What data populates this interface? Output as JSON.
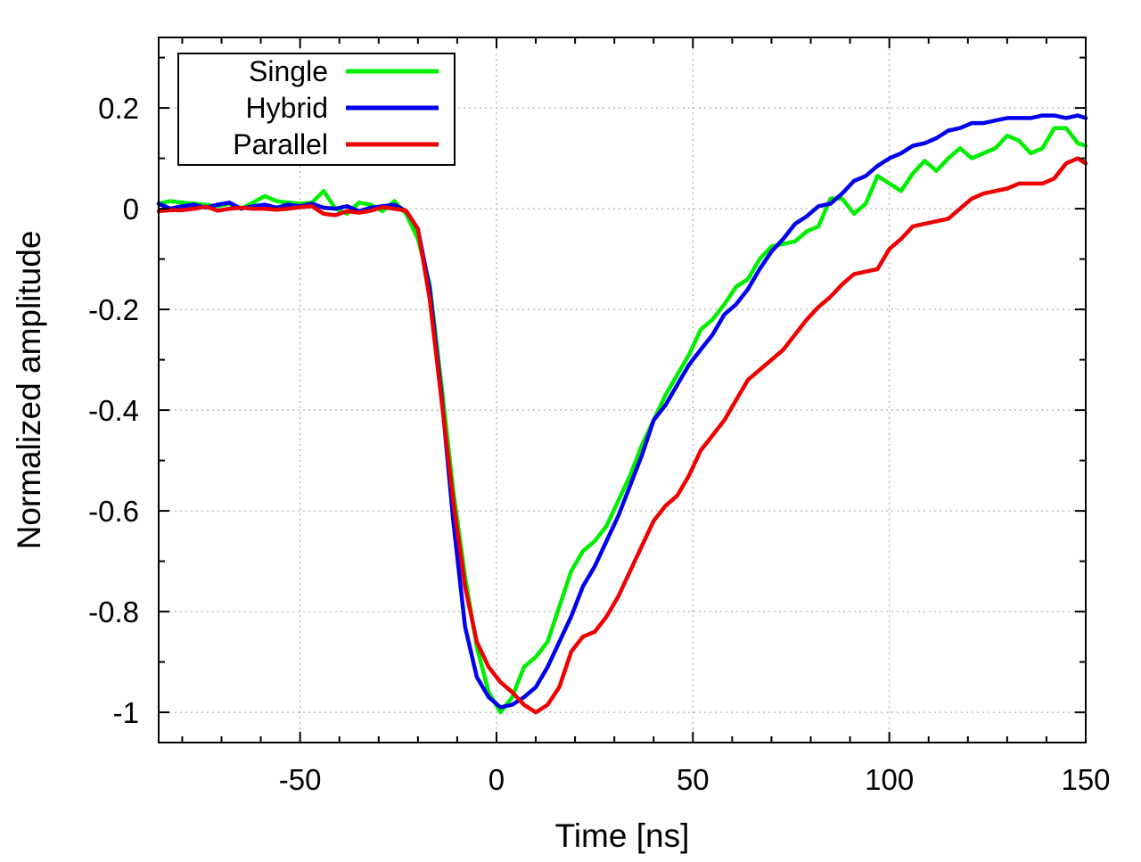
{
  "chart_data": {
    "type": "line",
    "xlabel": "Time [ns]",
    "ylabel": "Normalized amplitude",
    "xlim": [
      -86,
      150
    ],
    "ylim": [
      -1.06,
      0.34
    ],
    "xticks": [
      -50,
      0,
      50,
      100,
      150
    ],
    "xtick_labels": [
      "-50",
      "0",
      "50",
      "100",
      "150"
    ],
    "yticks": [
      0.2,
      0,
      -0.2,
      -0.4,
      -0.6,
      -0.8,
      -1
    ],
    "ytick_labels": [
      "0.2",
      "0",
      "-0.2",
      "-0.4",
      "-0.6",
      "-0.8",
      "-1"
    ],
    "grid": true,
    "legend_position": "top-left",
    "series": [
      {
        "name": "Single",
        "color": "#00ee00",
        "x": [
          -86,
          -83,
          -80,
          -77,
          -74,
          -71,
          -68,
          -65,
          -62,
          -59,
          -56,
          -53,
          -50,
          -47,
          -44,
          -41,
          -38,
          -35,
          -32,
          -29,
          -26,
          -23,
          -20,
          -17,
          -14,
          -11,
          -8,
          -5,
          -2,
          1,
          4,
          7,
          10,
          13,
          16,
          19,
          22,
          25,
          28,
          31,
          34,
          37,
          40,
          43,
          46,
          49,
          52,
          55,
          58,
          61,
          64,
          67,
          70,
          73,
          76,
          79,
          82,
          85,
          88,
          91,
          94,
          97,
          100,
          103,
          106,
          109,
          112,
          115,
          118,
          121,
          124,
          127,
          130,
          133,
          136,
          139,
          142,
          145,
          148,
          150
        ],
        "y": [
          0.01,
          0.015,
          0.012,
          0.01,
          0.008,
          0.005,
          0.01,
          0.0,
          0.012,
          0.025,
          0.015,
          0.012,
          0.01,
          0.012,
          0.035,
          0.0,
          -0.01,
          0.012,
          0.008,
          -0.005,
          0.015,
          -0.01,
          -0.06,
          -0.15,
          -0.35,
          -0.56,
          -0.73,
          -0.87,
          -0.96,
          -1.0,
          -0.97,
          -0.91,
          -0.89,
          -0.86,
          -0.79,
          -0.72,
          -0.68,
          -0.66,
          -0.63,
          -0.58,
          -0.53,
          -0.47,
          -0.42,
          -0.37,
          -0.33,
          -0.29,
          -0.24,
          -0.22,
          -0.19,
          -0.155,
          -0.14,
          -0.1,
          -0.075,
          -0.07,
          -0.065,
          -0.045,
          -0.035,
          0.02,
          0.02,
          -0.01,
          0.01,
          0.065,
          0.05,
          0.035,
          0.07,
          0.095,
          0.075,
          0.1,
          0.12,
          0.1,
          0.11,
          0.12,
          0.145,
          0.135,
          0.11,
          0.12,
          0.16,
          0.16,
          0.13,
          0.125
        ]
      },
      {
        "name": "Hybrid",
        "color": "#0000ee",
        "x": [
          -86,
          -83,
          -80,
          -77,
          -74,
          -71,
          -68,
          -65,
          -62,
          -59,
          -56,
          -53,
          -50,
          -47,
          -44,
          -41,
          -38,
          -35,
          -32,
          -29,
          -26,
          -23,
          -20,
          -17,
          -14,
          -11,
          -8,
          -5,
          -2,
          1,
          4,
          7,
          10,
          13,
          16,
          19,
          22,
          25,
          28,
          31,
          34,
          37,
          40,
          43,
          46,
          49,
          52,
          55,
          58,
          61,
          64,
          67,
          70,
          73,
          76,
          79,
          82,
          85,
          88,
          91,
          94,
          97,
          100,
          103,
          106,
          109,
          112,
          115,
          118,
          121,
          124,
          127,
          130,
          133,
          136,
          139,
          142,
          145,
          148,
          150
        ],
        "y": [
          0.01,
          0.0,
          0.005,
          0.008,
          0.002,
          0.008,
          0.012,
          0.0,
          0.005,
          0.008,
          0.002,
          0.008,
          0.005,
          0.01,
          0.002,
          0.0,
          0.005,
          -0.005,
          0.002,
          0.005,
          0.008,
          -0.005,
          -0.04,
          -0.16,
          -0.37,
          -0.62,
          -0.83,
          -0.93,
          -0.97,
          -0.99,
          -0.985,
          -0.97,
          -0.95,
          -0.91,
          -0.86,
          -0.81,
          -0.75,
          -0.71,
          -0.66,
          -0.61,
          -0.55,
          -0.49,
          -0.42,
          -0.39,
          -0.35,
          -0.31,
          -0.28,
          -0.25,
          -0.21,
          -0.19,
          -0.16,
          -0.12,
          -0.085,
          -0.06,
          -0.03,
          -0.015,
          0.005,
          0.01,
          0.03,
          0.055,
          0.065,
          0.085,
          0.1,
          0.11,
          0.125,
          0.13,
          0.14,
          0.155,
          0.16,
          0.17,
          0.17,
          0.175,
          0.18,
          0.18,
          0.18,
          0.185,
          0.185,
          0.18,
          0.185,
          0.18
        ]
      },
      {
        "name": "Parallel",
        "color": "#ee0000",
        "x": [
          -86,
          -83,
          -80,
          -77,
          -74,
          -71,
          -68,
          -65,
          -62,
          -59,
          -56,
          -53,
          -50,
          -47,
          -44,
          -41,
          -38,
          -35,
          -32,
          -29,
          -26,
          -23,
          -20,
          -17,
          -14,
          -11,
          -8,
          -5,
          -2,
          1,
          4,
          7,
          10,
          13,
          16,
          19,
          22,
          25,
          28,
          31,
          34,
          37,
          40,
          43,
          46,
          49,
          52,
          55,
          58,
          61,
          64,
          67,
          70,
          73,
          76,
          79,
          82,
          85,
          88,
          91,
          94,
          97,
          100,
          103,
          106,
          109,
          112,
          115,
          118,
          121,
          124,
          127,
          130,
          133,
          136,
          139,
          142,
          145,
          148,
          150
        ],
        "y": [
          -0.005,
          -0.003,
          -0.003,
          0.0,
          0.004,
          -0.004,
          0.0,
          0.002,
          0.0,
          0.0,
          -0.002,
          0.0,
          0.003,
          0.005,
          -0.01,
          -0.013,
          -0.005,
          -0.008,
          -0.004,
          0.003,
          0.0,
          -0.004,
          -0.04,
          -0.18,
          -0.38,
          -0.58,
          -0.75,
          -0.86,
          -0.91,
          -0.94,
          -0.96,
          -0.985,
          -1.0,
          -0.985,
          -0.95,
          -0.88,
          -0.85,
          -0.84,
          -0.81,
          -0.77,
          -0.72,
          -0.67,
          -0.62,
          -0.59,
          -0.57,
          -0.53,
          -0.48,
          -0.45,
          -0.42,
          -0.38,
          -0.34,
          -0.32,
          -0.3,
          -0.28,
          -0.25,
          -0.22,
          -0.195,
          -0.175,
          -0.15,
          -0.13,
          -0.125,
          -0.12,
          -0.08,
          -0.06,
          -0.035,
          -0.03,
          -0.025,
          -0.02,
          0.0,
          0.02,
          0.03,
          0.035,
          0.04,
          0.05,
          0.05,
          0.05,
          0.06,
          0.09,
          0.1,
          0.09
        ]
      }
    ]
  }
}
